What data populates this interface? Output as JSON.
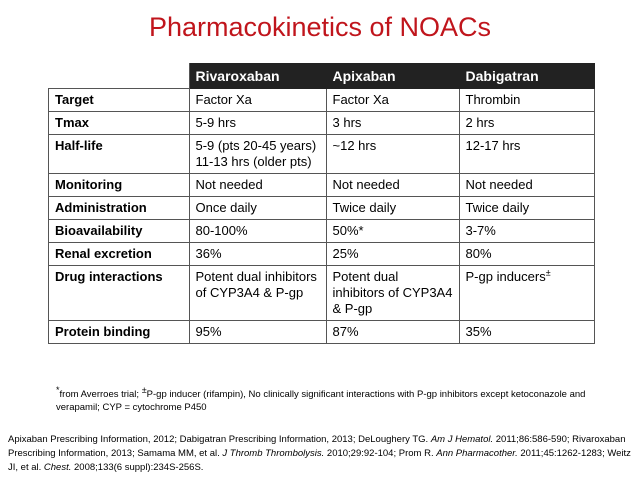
{
  "title": "Pharmacokinetics of NOACs",
  "table": {
    "headers": [
      "",
      "Rivaroxaban",
      "Apixaban",
      "Dabigatran"
    ],
    "rows": [
      {
        "label": "Target",
        "cells": [
          "Factor Xa",
          "Factor Xa",
          "Thrombin"
        ]
      },
      {
        "label": "Tmax",
        "cells": [
          "5-9 hrs",
          "3 hrs",
          "2 hrs"
        ]
      },
      {
        "label": "Half-life",
        "cells": [
          "5-9 (pts 20-45 years) 11-13 hrs (older pts)",
          "~12 hrs",
          "12-17 hrs"
        ]
      },
      {
        "label": "Monitoring",
        "cells": [
          "Not needed",
          "Not needed",
          "Not needed"
        ]
      },
      {
        "label": "Administration",
        "cells": [
          "Once daily",
          "Twice daily",
          "Twice daily"
        ]
      },
      {
        "label": "Bioavailability",
        "cells": [
          "80-100%",
          "50%*",
          "3-7%"
        ]
      },
      {
        "label": "Renal excretion",
        "cells": [
          "36%",
          "25%",
          "80%"
        ]
      },
      {
        "label": "Drug interactions",
        "cells": [
          "Potent dual inhibitors of CYP3A4 & P-gp",
          "Potent dual inhibitors of CYP3A4 & P-gp",
          "P-gp inducers"
        ]
      },
      {
        "label": "Protein binding",
        "cells": [
          "95%",
          "87%",
          "35%"
        ]
      }
    ],
    "pgp_mark": "±"
  },
  "footnote": {
    "star": "*",
    "a": "from Averroes trial; ",
    "pm": "±",
    "b": "P-gp inducer (rifampin), No clinically significant interactions with P-gp inhibitors except ketoconazole and verapamil; CYP = cytochrome P450"
  },
  "refs": {
    "p1": "Apixaban Prescribing Information, 2012; Dabigatran Prescribing Information, 2013; DeLoughery TG. ",
    "j1": "Am J Hematol.",
    "p2": " 2011;86:586-590; Rivaroxaban Prescribing Information, 2013; Samama MM, et al. ",
    "j2": "J Thromb Thrombolysis.",
    "p3": " 2010;29:92-104; Prom R. ",
    "j3": "Ann Pharmacother.",
    "p4": " 2011;45:1262-1283; Weitz JI, et al. ",
    "j4": "Chest.",
    "p5": " 2008;133(6 suppl):234S-256S."
  }
}
